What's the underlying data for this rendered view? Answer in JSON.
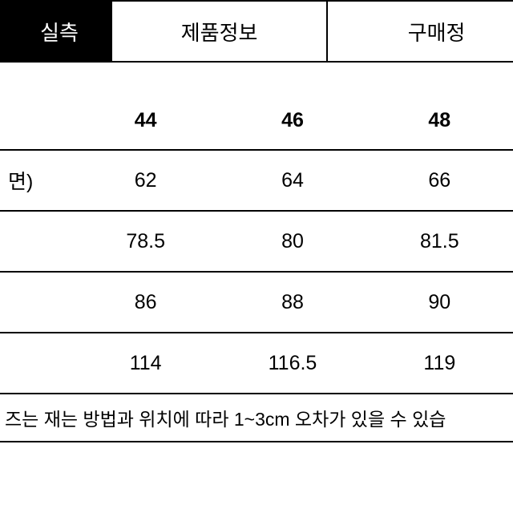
{
  "tabs": {
    "first": "실측",
    "second": "제품정보",
    "third": "구매정"
  },
  "sizes": {
    "col1": "44",
    "col2": "46",
    "col3": "48"
  },
  "rows": [
    {
      "label": "면)",
      "v1": "62",
      "v2": "64",
      "v3": "66"
    },
    {
      "label": "",
      "v1": "78.5",
      "v2": "80",
      "v3": "81.5"
    },
    {
      "label": "",
      "v1": "86",
      "v2": "88",
      "v3": "90"
    },
    {
      "label": "",
      "v1": "114",
      "v2": "116.5",
      "v3": "119"
    }
  ],
  "footer": "즈는 재는 방법과 위치에 따라 1~3cm 오차가 있을 수 있습"
}
